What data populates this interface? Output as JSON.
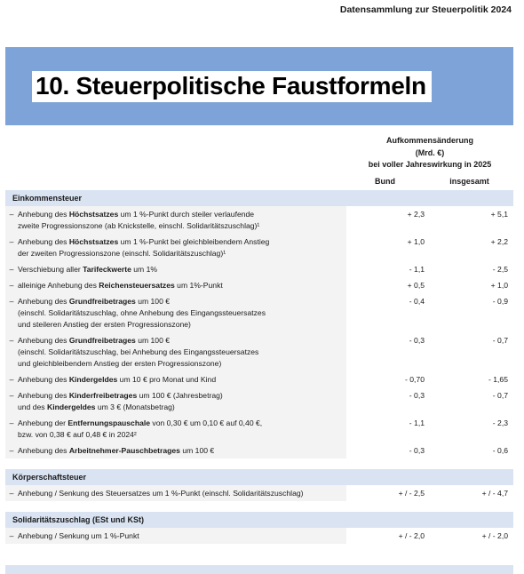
{
  "header": {
    "top_note": "Datensammlung zur Steuerpolitik 2024",
    "title": "10. Steuerpolitische Faustformeln"
  },
  "table": {
    "column_group": [
      "Aufkommensänderung",
      "(Mrd. €)",
      "bei voller Jahreswirkung in 2025"
    ],
    "columns": [
      "Bund",
      "insgesamt"
    ],
    "sections": [
      {
        "name": "Einkommensteuer",
        "rows": [
          {
            "bullet": "–",
            "lines": [
              [
                {
                  "text": "Anhebung des ",
                  "bold": false
                },
                {
                  "text": "Höchstsatzes",
                  "bold": true
                },
                {
                  "text": " um 1 %-Punkt durch steiler verlaufende",
                  "bold": false
                }
              ],
              [
                {
                  "text": "zweite Progressionszone (ab Knickstelle, einschl. Solidaritätszuschlag)¹",
                  "bold": false
                }
              ]
            ],
            "values": [
              "+ 2,3",
              "+ 5,1"
            ]
          },
          {
            "bullet": "–",
            "lines": [
              [
                {
                  "text": "Anhebung des ",
                  "bold": false
                },
                {
                  "text": "Höchstsatzes",
                  "bold": true
                },
                {
                  "text": " um 1 %-Punkt bei gleichbleibendem Anstieg",
                  "bold": false
                }
              ],
              [
                {
                  "text": "der zweiten Progressionszone (einschl. Solidaritätszuschlag)¹",
                  "bold": false
                }
              ]
            ],
            "values": [
              "+ 1,0",
              "+ 2,2"
            ]
          },
          {
            "bullet": "–",
            "lines": [
              [
                {
                  "text": "Verschiebung aller ",
                  "bold": false
                },
                {
                  "text": "Tarifeckwerte",
                  "bold": true
                },
                {
                  "text": " um 1%",
                  "bold": false
                }
              ]
            ],
            "values": [
              "- 1,1",
              "- 2,5"
            ]
          },
          {
            "bullet": "–",
            "lines": [
              [
                {
                  "text": "alleinige Anhebung des ",
                  "bold": false
                },
                {
                  "text": "Reichensteuersatzes",
                  "bold": true
                },
                {
                  "text": " um 1%-Punkt",
                  "bold": false
                }
              ]
            ],
            "values": [
              "+ 0,5",
              "+ 1,0"
            ]
          },
          {
            "bullet": "–",
            "lines": [
              [
                {
                  "text": "Anhebung des ",
                  "bold": false
                },
                {
                  "text": "Grundfreibetrages",
                  "bold": true
                },
                {
                  "text": " um 100 €",
                  "bold": false
                }
              ],
              [
                {
                  "text": "(einschl. Solidaritätszuschlag, ohne Anhebung des Eingangssteuersatzes",
                  "bold": false
                }
              ],
              [
                {
                  "text": "und steileren Anstieg der ersten Progressionszone)",
                  "bold": false
                }
              ]
            ],
            "values": [
              "- 0,4",
              "- 0,9"
            ]
          },
          {
            "bullet": "–",
            "lines": [
              [
                {
                  "text": "Anhebung des ",
                  "bold": false
                },
                {
                  "text": "Grundfreibetrages",
                  "bold": true
                },
                {
                  "text": " um 100 €",
                  "bold": false
                }
              ],
              [
                {
                  "text": "(einschl. Solidaritätszuschlag, bei Anhebung des Eingangssteuersatzes",
                  "bold": false
                }
              ],
              [
                {
                  "text": "und gleichbleibendem Anstieg der ersten Progressionszone)",
                  "bold": false
                }
              ]
            ],
            "values": [
              "- 0,3",
              "- 0,7"
            ]
          },
          {
            "bullet": "–",
            "lines": [
              [
                {
                  "text": "Anhebung des ",
                  "bold": false
                },
                {
                  "text": "Kindergeldes",
                  "bold": true
                },
                {
                  "text": " um 10 € pro Monat und Kind",
                  "bold": false
                }
              ]
            ],
            "values": [
              "- 0,70",
              "- 1,65"
            ]
          },
          {
            "bullet": "–",
            "lines": [
              [
                {
                  "text": "Anhebung des ",
                  "bold": false
                },
                {
                  "text": "Kinderfreibetrages",
                  "bold": true
                },
                {
                  "text": " um 100 € (Jahresbetrag)",
                  "bold": false
                }
              ],
              [
                {
                  "text": "und des ",
                  "bold": false
                },
                {
                  "text": "Kindergeldes",
                  "bold": true
                },
                {
                  "text": " um 3 € (Monatsbetrag)",
                  "bold": false
                }
              ]
            ],
            "values": [
              "- 0,3",
              "- 0,7"
            ]
          },
          {
            "bullet": "–",
            "lines": [
              [
                {
                  "text": "Anhebung der ",
                  "bold": false
                },
                {
                  "text": "Entfernungspauschale",
                  "bold": true
                },
                {
                  "text": " von 0,30 € um 0,10 € auf 0,40 €,",
                  "bold": false
                }
              ],
              [
                {
                  "text": "bzw. von 0,38 € auf 0,48 € in 2024²",
                  "bold": false
                }
              ]
            ],
            "values": [
              "- 1,1",
              "- 2,3"
            ]
          },
          {
            "bullet": "–",
            "lines": [
              [
                {
                  "text": "Anhebung des ",
                  "bold": false
                },
                {
                  "text": "Arbeitnehmer-Pauschbetrages",
                  "bold": true
                },
                {
                  "text": " um 100 €",
                  "bold": false
                }
              ]
            ],
            "values": [
              "- 0,3",
              "- 0,6"
            ]
          }
        ]
      },
      {
        "name": "Körperschaftsteuer",
        "rows": [
          {
            "bullet": "–",
            "lines": [
              [
                {
                  "text": "Anhebung / Senkung des Steuersatzes um 1 %-Punkt (einschl. Solidaritätszuschlag)",
                  "bold": false
                }
              ]
            ],
            "values": [
              "+ / - 2,5",
              "+ / - 4,7"
            ]
          }
        ]
      },
      {
        "name": "Solidaritätszuschlag (ESt und KSt)",
        "rows": [
          {
            "bullet": "–",
            "lines": [
              [
                {
                  "text": "Anhebung / Senkung um 1 %-Punkt",
                  "bold": false
                }
              ]
            ],
            "values": [
              "+ / - 2,0",
              "+ / - 2,0"
            ]
          }
        ]
      }
    ]
  }
}
